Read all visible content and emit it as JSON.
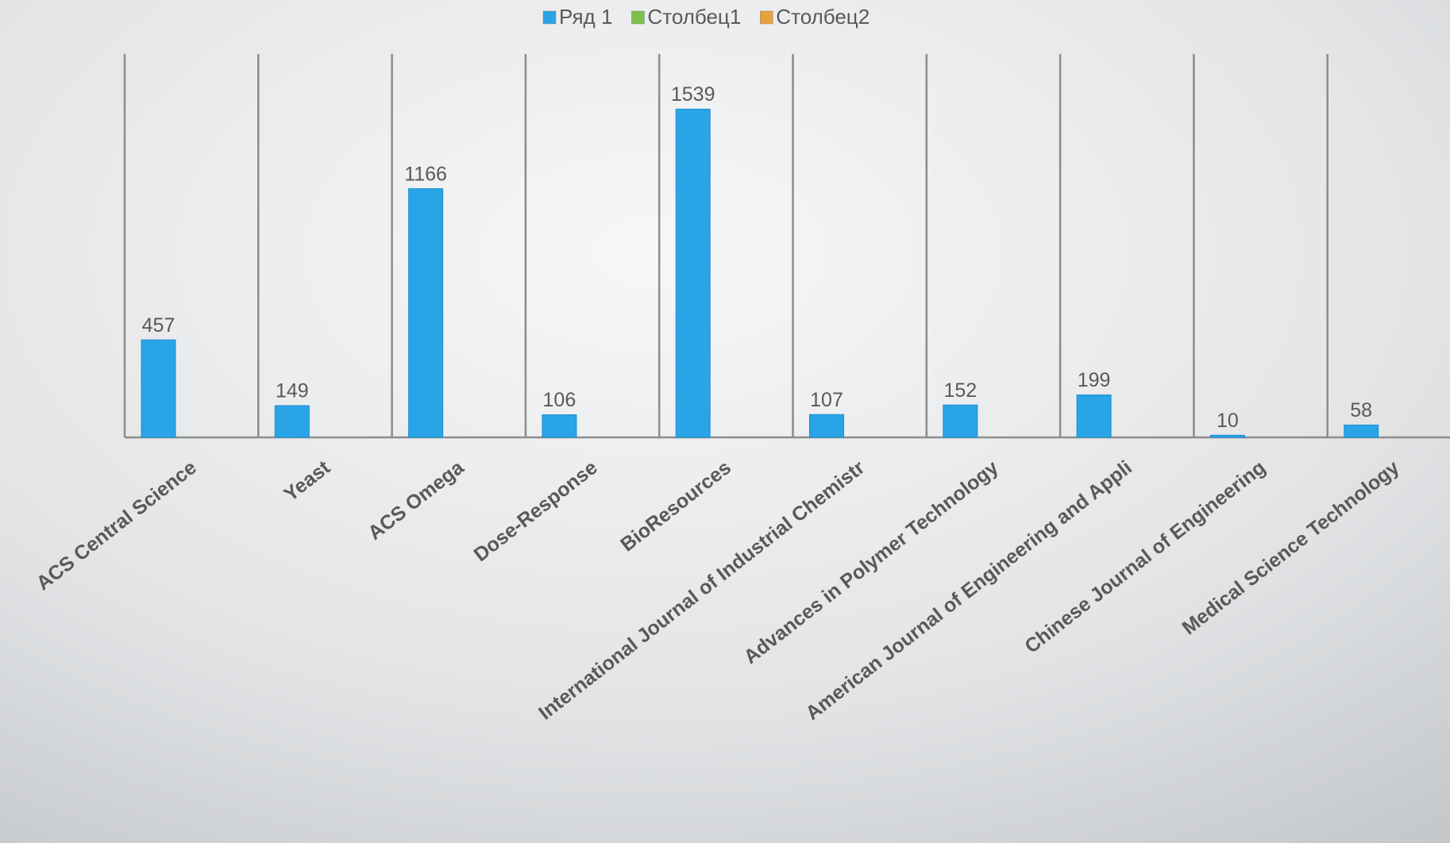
{
  "chart_data": {
    "type": "bar",
    "categories": [
      "ACS Central Science",
      "Yeast",
      "ACS Omega",
      "Dose-Response",
      "BioResources",
      "International Journal of Industrial Chemistr",
      "Advances in Polymer Technology",
      "American Journal of Engineering and Appli",
      "Chinese Journal of Engineering",
      "Medical Science Technology"
    ],
    "series": [
      {
        "name": "Ряд 1",
        "color": "#29a4e6",
        "values": [
          457,
          149,
          1166,
          106,
          1539,
          107,
          152,
          199,
          10,
          58
        ]
      },
      {
        "name": "Столбец1",
        "color": "#7cc04b",
        "values": [
          null,
          null,
          null,
          null,
          null,
          null,
          null,
          null,
          null,
          null
        ]
      },
      {
        "name": "Столбец2",
        "color": "#e7a23b",
        "values": [
          null,
          null,
          null,
          null,
          null,
          null,
          null,
          null,
          null,
          null
        ]
      }
    ],
    "grid": true,
    "legend": "top"
  }
}
